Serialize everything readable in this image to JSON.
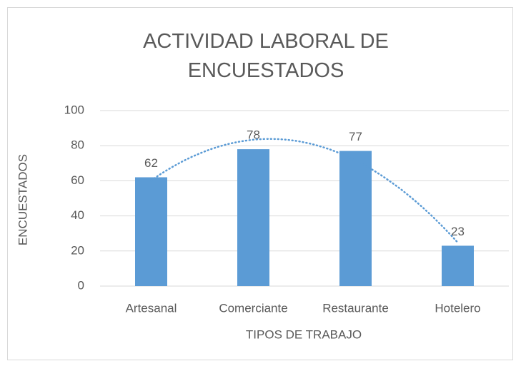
{
  "chart_data": {
    "type": "bar",
    "title": "ACTIVIDAD LABORAL DE ENCUESTADOS",
    "x_label": "TIPOS DE TRABAJO",
    "y_label": "ENCUESTADOS",
    "categories": [
      "Artesanal",
      "Comerciante",
      "Restaurante",
      "Hotelero"
    ],
    "values": [
      62,
      78,
      77,
      23
    ],
    "color": "#5b9bd5",
    "ylim": [
      0,
      100
    ],
    "yticks": [
      0,
      20,
      40,
      60,
      80,
      100
    ],
    "grid": true,
    "trendline": {
      "type": "polynomial",
      "order": 2,
      "color": "#5b9bd5"
    }
  }
}
